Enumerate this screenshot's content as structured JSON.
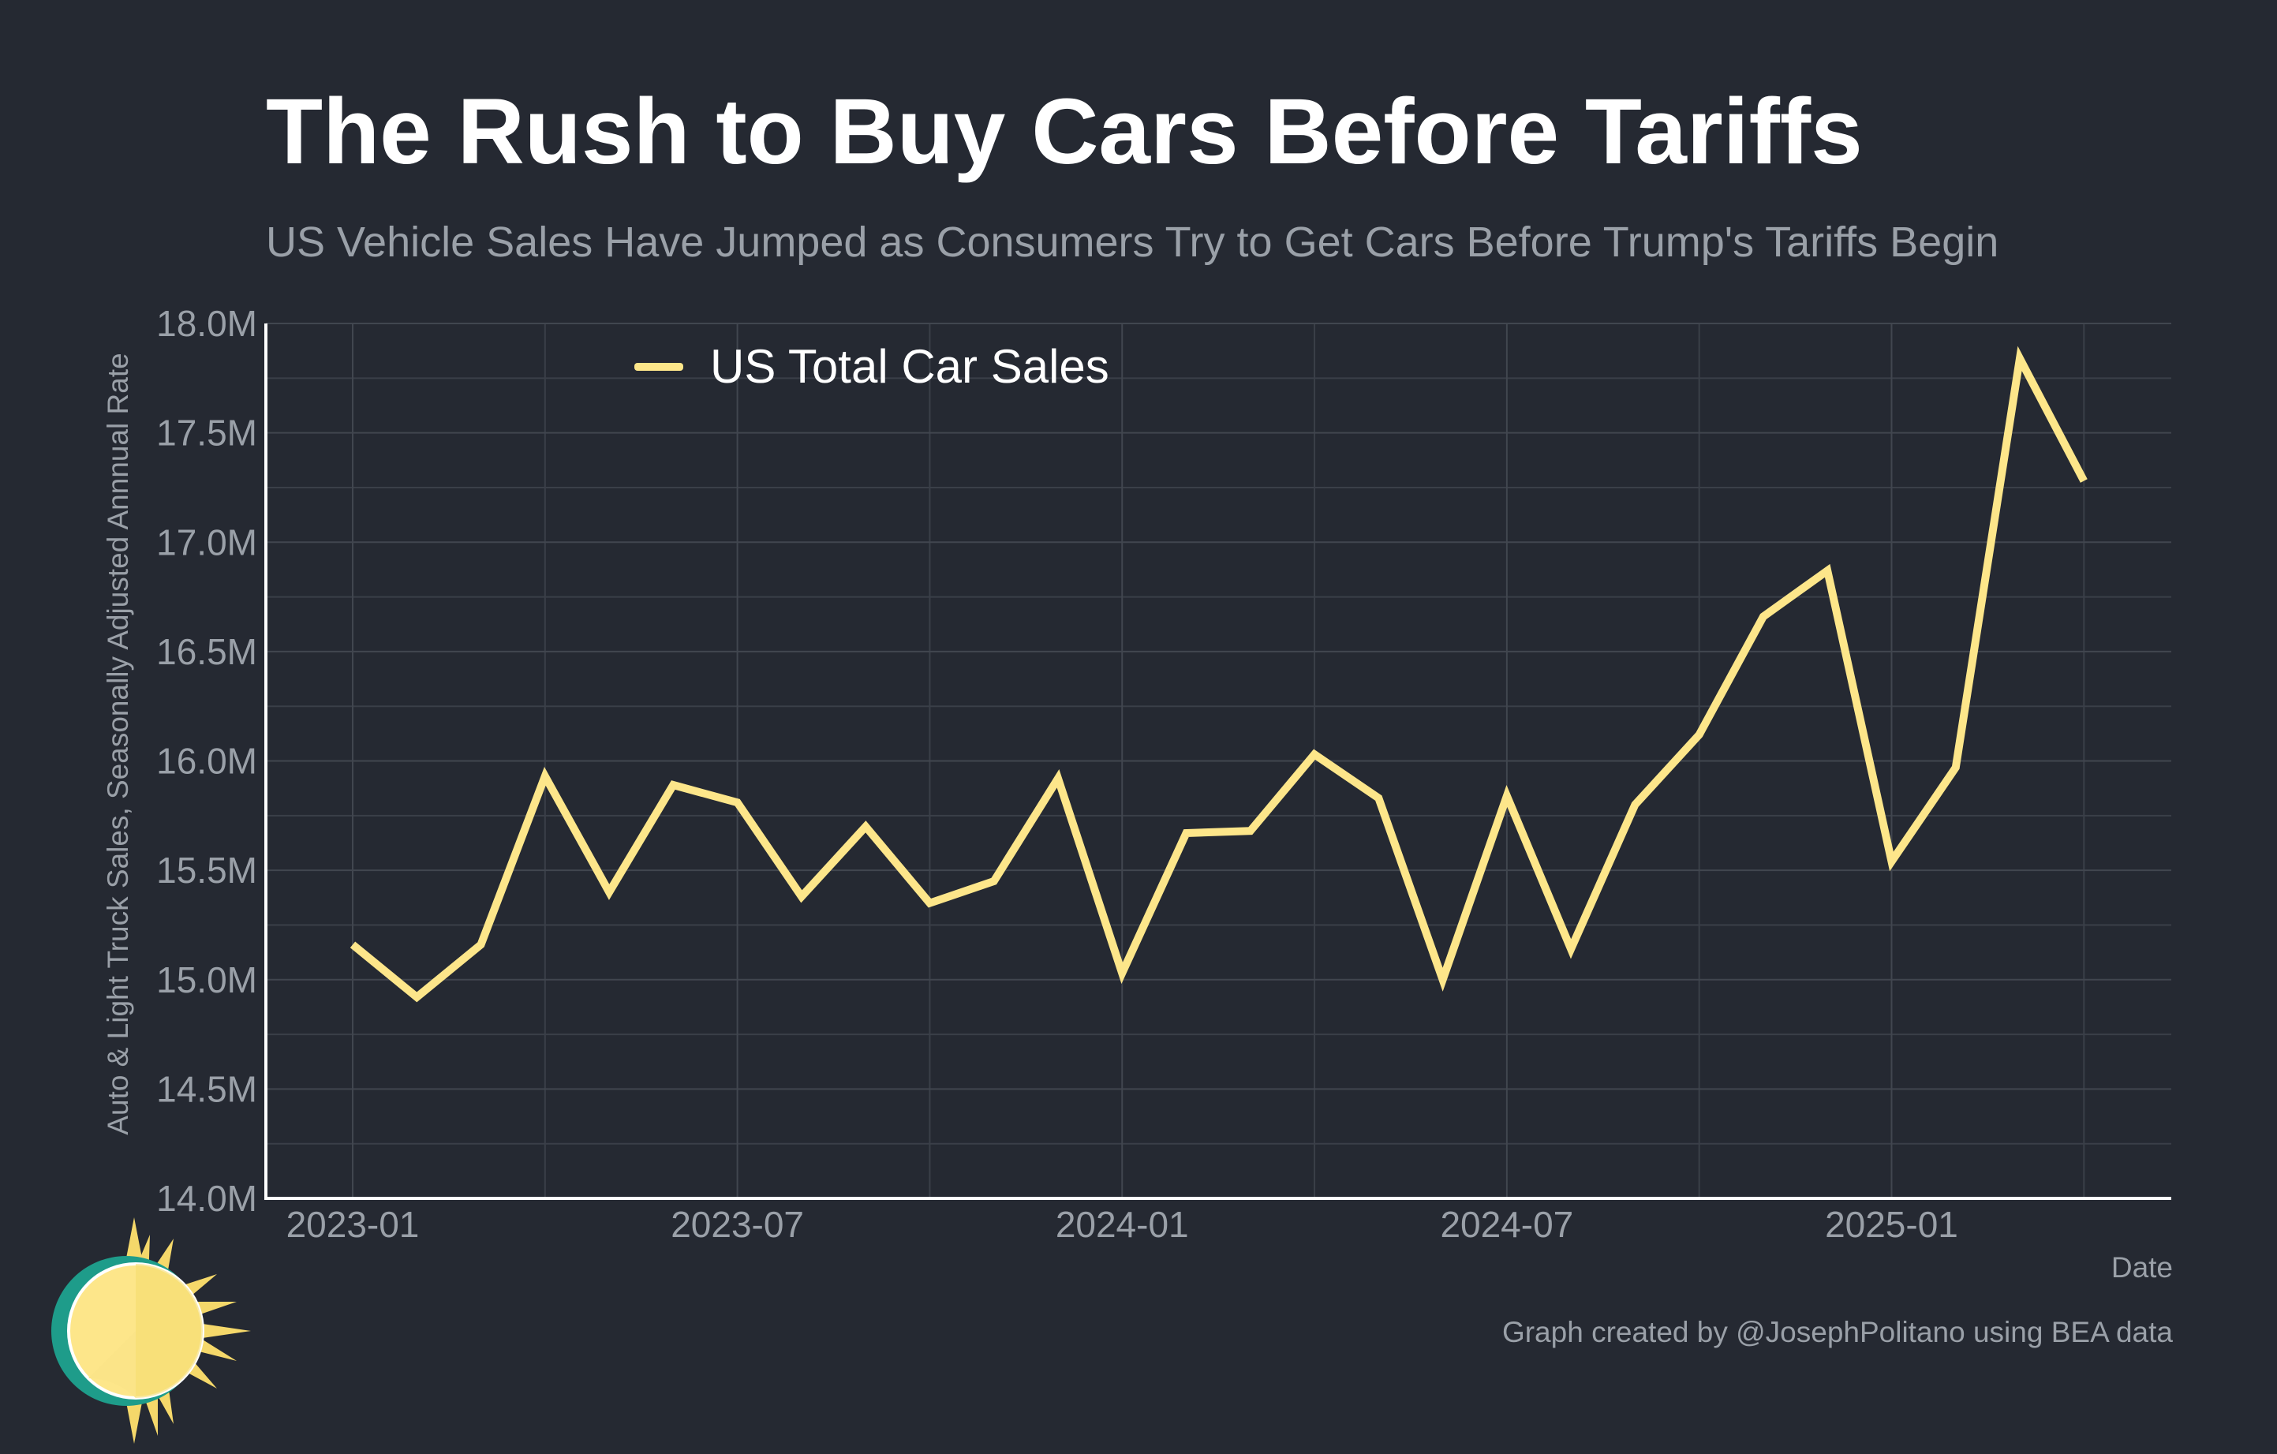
{
  "chart_data": {
    "type": "line",
    "title": "The Rush to Buy Cars Before Tariffs",
    "subtitle": "US Vehicle Sales Have Jumped as Consumers Try to Get Cars Before Trump's Tariffs Begin",
    "xlabel": "Date",
    "ylabel": "Auto & Light Truck Sales, Seasonally Adjusted Annnual Rate",
    "credit": "Graph created by @JosephPolitano using BEA data",
    "ylim": [
      14.0,
      18.0
    ],
    "y_ticks": [
      14.0,
      14.5,
      15.0,
      15.5,
      16.0,
      16.5,
      17.0,
      17.5,
      18.0
    ],
    "y_tick_labels": [
      "14.0M",
      "14.5M",
      "15.0M",
      "15.5M",
      "16.0M",
      "16.5M",
      "17.0M",
      "17.5M",
      "18.0M"
    ],
    "x_tick_labels": [
      "2023-01",
      "2023-07",
      "2024-01",
      "2024-07",
      "2025-01"
    ],
    "x_tick_month_index": [
      0,
      6,
      12,
      18,
      24
    ],
    "grid": true,
    "legend_position": "top-left",
    "series": [
      {
        "name": "US Total Car Sales",
        "color": "#fde68a",
        "dates": [
          "2023-01",
          "2023-02",
          "2023-03",
          "2023-04",
          "2023-05",
          "2023-06",
          "2023-07",
          "2023-08",
          "2023-09",
          "2023-10",
          "2023-11",
          "2023-12",
          "2024-01",
          "2024-02",
          "2024-03",
          "2024-04",
          "2024-05",
          "2024-06",
          "2024-07",
          "2024-08",
          "2024-09",
          "2024-10",
          "2024-11",
          "2024-12",
          "2025-01",
          "2025-02",
          "2025-03",
          "2025-04"
        ],
        "values": [
          15.16,
          14.92,
          15.16,
          15.93,
          15.4,
          15.89,
          15.81,
          15.38,
          15.7,
          15.35,
          15.45,
          15.92,
          15.03,
          15.67,
          15.68,
          16.03,
          15.83,
          15.0,
          15.84,
          15.14,
          15.8,
          16.12,
          16.66,
          16.87,
          15.54,
          15.97,
          17.84,
          17.28
        ]
      }
    ]
  },
  "background_color": "#252932",
  "text_muted_color": "#9aa0a8",
  "logo_icon": "sun-logo-icon"
}
